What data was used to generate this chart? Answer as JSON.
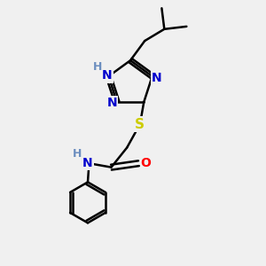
{
  "bg_color": "#f0f0f0",
  "atom_colors": {
    "C": "#000000",
    "N": "#0000cd",
    "O": "#ff0000",
    "S": "#cccc00",
    "H": "#6c8ebf"
  },
  "bond_color": "#000000",
  "bond_width": 1.8,
  "font_size_atom": 10
}
